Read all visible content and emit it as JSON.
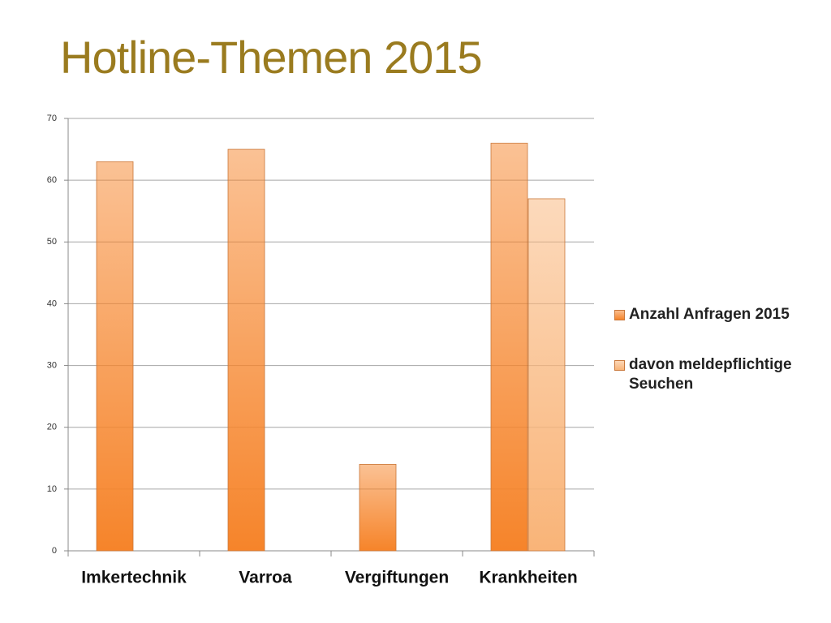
{
  "chart_data": {
    "type": "bar",
    "title": "Hotline-Themen 2015",
    "categories": [
      "Imkertechnik",
      "Varroa",
      "Vergiftungen",
      "Krankheiten"
    ],
    "series": [
      {
        "name": "Anzahl Anfragen 2015",
        "color": "#f6842a",
        "values": [
          63,
          65,
          14,
          66
        ]
      },
      {
        "name": "davon meldepflichtige Seuchen",
        "color": "#f9b478",
        "values": [
          null,
          null,
          null,
          57
        ]
      }
    ],
    "ylim": [
      0,
      70
    ],
    "yticks": [
      0,
      10,
      20,
      30,
      40,
      50,
      60,
      70
    ],
    "grid": true,
    "legend": "right"
  }
}
